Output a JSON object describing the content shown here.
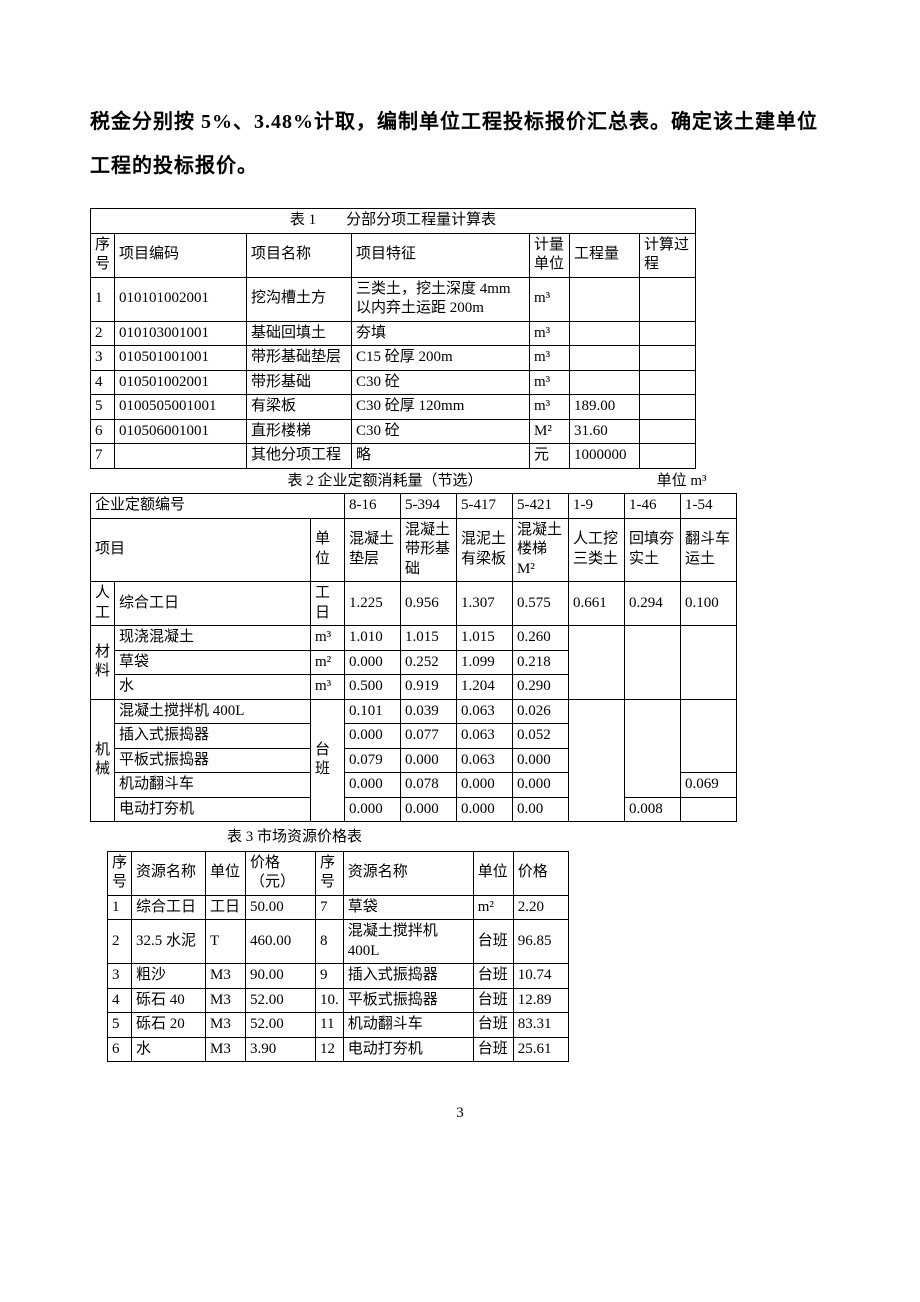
{
  "heading": "税金分别按 5%、3.48%计取，编制单位工程投标报价汇总表。确定该土建单位工程的投标报价。",
  "table1": {
    "title": "表 1　　分部分项工程量计算表",
    "headers": [
      "序号",
      "项目编码",
      "项目名称",
      "项目特征",
      "计量单位",
      "工程量",
      "计算过程"
    ],
    "rows": [
      {
        "n": "1",
        "code": "010101002001",
        "name": "挖沟槽土方",
        "feat": "三类土，挖土深度 4mm\n以内弃土运距 200m",
        "unit": "m³",
        "qty": "",
        "calc": ""
      },
      {
        "n": "2",
        "code": "010103001001",
        "name": "基础回填土",
        "feat": "夯填",
        "unit": "m³",
        "qty": "",
        "calc": ""
      },
      {
        "n": "3",
        "code": "010501001001",
        "name": "带形基础垫层",
        "feat": "C15 砼厚 200m",
        "unit": "m³",
        "qty": "",
        "calc": ""
      },
      {
        "n": "4",
        "code": "010501002001",
        "name": "带形基础",
        "feat": "C30 砼",
        "unit": "m³",
        "qty": "",
        "calc": ""
      },
      {
        "n": "5",
        "code": "0100505001001",
        "name": "有梁板",
        "feat": "C30 砼厚 120mm",
        "unit": "m³",
        "qty": "189.00",
        "calc": ""
      },
      {
        "n": "6",
        "code": "010506001001",
        "name": "直形楼梯",
        "feat": "C30 砼",
        "unit": "M²",
        "qty": "31.60",
        "calc": ""
      },
      {
        "n": "7",
        "code": "",
        "name": "其他分项工程",
        "feat": "略",
        "unit": "元",
        "qty": "1000000",
        "calc": ""
      }
    ]
  },
  "table2": {
    "title": "表 2 企业定额消耗量（节选）",
    "unit_label": "单位 m³",
    "row_code_label": "企业定额编号",
    "row_item_label": "项目",
    "row_unit_label": "单位",
    "codes": [
      "8-16",
      "5-394",
      "5-417",
      "5-421",
      "1-9",
      "1-46",
      "1-54"
    ],
    "items": [
      "混凝土垫层",
      "混凝土带形基础",
      "混泥土有梁板",
      "混凝土楼梯 M²",
      "人工挖三类土",
      "回填夯实土",
      "翻斗车运土"
    ],
    "groups": [
      {
        "label": "人工",
        "rows": [
          {
            "name": "综合工日",
            "unit": "工日",
            "v": [
              "1.225",
              "0.956",
              "1.307",
              "0.575",
              "0.661",
              "0.294",
              "0.100"
            ]
          }
        ]
      },
      {
        "label": "材料",
        "rows": [
          {
            "name": "现浇混凝土",
            "unit": "m³",
            "v": [
              "1.010",
              "1.015",
              "1.015",
              "0.260",
              "",
              "",
              ""
            ]
          },
          {
            "name": "草袋",
            "unit": "m²",
            "v": [
              "0.000",
              "0.252",
              "1.099",
              "0.218",
              "",
              "",
              ""
            ]
          },
          {
            "name": "水",
            "unit": "m³",
            "v": [
              "0.500",
              "0.919",
              "1.204",
              "0.290",
              "",
              "",
              ""
            ]
          }
        ]
      },
      {
        "label": "机械",
        "rows": [
          {
            "name": "混凝土搅拌机 400L",
            "unit": "",
            "v": [
              "0.101",
              "0.039",
              "0.063",
              "0.026",
              "",
              "",
              ""
            ]
          },
          {
            "name": "插入式振捣器",
            "unit": "",
            "v": [
              "0.000",
              "0.077",
              "0.063",
              "0.052",
              "",
              "",
              ""
            ]
          },
          {
            "name": "平板式振捣器",
            "unit": "台班",
            "v": [
              "0.079",
              "0.000",
              "0.063",
              "0.000",
              "",
              "",
              ""
            ]
          },
          {
            "name": "机动翻斗车",
            "unit": "",
            "v": [
              "0.000",
              "0.078",
              "0.000",
              "0.000",
              "",
              "",
              "0.069"
            ]
          },
          {
            "name": "电动打夯机",
            "unit": "",
            "v": [
              "0.000",
              "0.000",
              "0.000",
              "0.00",
              "",
              "0.008",
              ""
            ]
          }
        ]
      }
    ]
  },
  "table3": {
    "title": "表 3 市场资源价格表",
    "headers": [
      "序号",
      "资源名称",
      "单位",
      "价格（元）",
      "序号",
      "资源名称",
      "单位",
      "价格"
    ],
    "rows": [
      [
        "1",
        "综合工日",
        "工日",
        "50.00",
        "7",
        "草袋",
        "m²",
        "2.20"
      ],
      [
        "2",
        "32.5 水泥",
        "T",
        "460.00",
        "8",
        "混凝土搅拌机 400L",
        "台班",
        "96.85"
      ],
      [
        "3",
        "粗沙",
        "M3",
        "90.00",
        "9",
        "插入式振捣器",
        "台班",
        "10.74"
      ],
      [
        "4",
        "砾石 40",
        "M3",
        "52.00",
        "10.",
        "平板式振捣器",
        "台班",
        "12.89"
      ],
      [
        "5",
        "砾石 20",
        "M3",
        "52.00",
        "11",
        "机动翻斗车",
        "台班",
        "83.31"
      ],
      [
        "6",
        "水",
        "M3",
        "3.90",
        "12",
        "电动打夯机",
        "台班",
        "25.61"
      ]
    ]
  },
  "page_number": "3"
}
